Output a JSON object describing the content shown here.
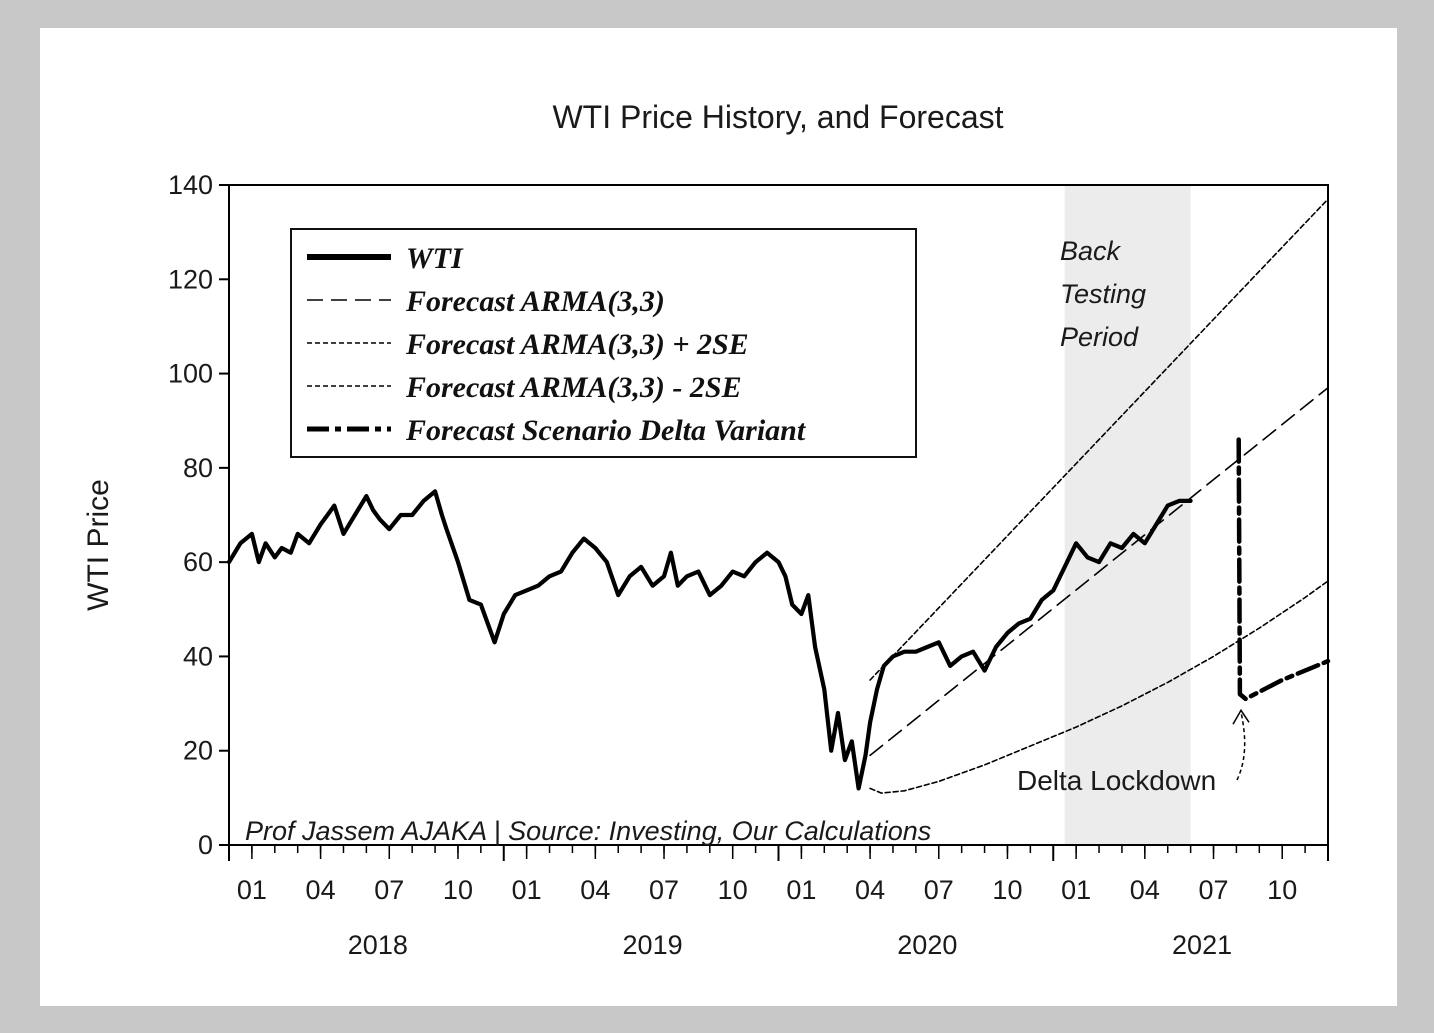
{
  "chart_data": {
    "type": "line",
    "title": "WTI Price History, and Forecast",
    "xlabel": "",
    "ylabel": "WTI Price",
    "ylim": [
      0,
      140
    ],
    "yticks": [
      0,
      20,
      40,
      60,
      80,
      100,
      120,
      140
    ],
    "xlim": [
      0,
      48
    ],
    "x_tick_labels": [
      {
        "m": 1,
        "label": "01"
      },
      {
        "m": 4,
        "label": "04"
      },
      {
        "m": 7,
        "label": "07"
      },
      {
        "m": 10,
        "label": "10"
      },
      {
        "m": 13,
        "label": "01"
      },
      {
        "m": 16,
        "label": "04"
      },
      {
        "m": 19,
        "label": "07"
      },
      {
        "m": 22,
        "label": "10"
      },
      {
        "m": 25,
        "label": "01"
      },
      {
        "m": 28,
        "label": "04"
      },
      {
        "m": 31,
        "label": "07"
      },
      {
        "m": 34,
        "label": "10"
      },
      {
        "m": 37,
        "label": "01"
      },
      {
        "m": 40,
        "label": "04"
      },
      {
        "m": 43,
        "label": "07"
      },
      {
        "m": 46,
        "label": "10"
      }
    ],
    "year_labels": [
      {
        "m": 6.5,
        "label": "2018"
      },
      {
        "m": 18.5,
        "label": "2019"
      },
      {
        "m": 30.5,
        "label": "2020"
      },
      {
        "m": 42.5,
        "label": "2021"
      }
    ],
    "grid": false,
    "legend_position": "top-left",
    "shaded_region": {
      "x_start": 36.5,
      "x_end": 42,
      "label_lines": [
        "Back",
        "Testing",
        "Period"
      ],
      "color": "#ececec"
    },
    "series": [
      {
        "name": "WTI",
        "style": "solid-thick",
        "x": [
          0,
          0.5,
          1.0,
          1.3,
          1.6,
          2.0,
          2.3,
          2.7,
          3.0,
          3.5,
          4.0,
          4.3,
          4.6,
          5.0,
          5.5,
          6.0,
          6.3,
          6.6,
          7.0,
          7.5,
          8.0,
          8.5,
          9.0,
          9.3,
          9.5,
          10.0,
          10.5,
          11.0,
          11.3,
          11.6,
          12.0,
          12.5,
          13.0,
          13.5,
          14.0,
          14.5,
          15.0,
          15.5,
          16.0,
          16.5,
          17.0,
          17.5,
          18.0,
          18.5,
          19.0,
          19.3,
          19.6,
          20.0,
          20.5,
          21.0,
          21.5,
          22.0,
          22.5,
          23.0,
          23.5,
          24.0,
          24.3,
          24.6,
          25.0,
          25.3,
          25.6,
          26.0,
          26.3,
          26.6,
          26.9,
          27.2,
          27.5,
          27.8,
          28.0,
          28.3,
          28.6,
          29.0,
          29.5,
          30.0,
          30.5,
          31.0,
          31.5,
          32.0,
          32.5,
          33.0,
          33.5,
          34.0,
          34.5,
          35.0,
          35.5,
          36.0,
          36.5,
          37.0,
          37.5,
          38.0,
          38.5,
          39.0,
          39.5,
          40.0,
          40.5,
          41.0,
          41.5,
          42.0
        ],
        "y": [
          60,
          64,
          66,
          60,
          64,
          61,
          63,
          62,
          66,
          64,
          68,
          70,
          72,
          66,
          70,
          74,
          71,
          69,
          67,
          70,
          70,
          73,
          75,
          70,
          67,
          60,
          52,
          51,
          47,
          43,
          49,
          53,
          54,
          55,
          57,
          58,
          62,
          65,
          63,
          60,
          53,
          57,
          59,
          55,
          57,
          62,
          55,
          57,
          58,
          53,
          55,
          58,
          57,
          60,
          62,
          60,
          57,
          51,
          49,
          53,
          42,
          33,
          20,
          28,
          18,
          22,
          12,
          19,
          26,
          33,
          38,
          40,
          41,
          41,
          42,
          43,
          38,
          40,
          41,
          37,
          42,
          45,
          47,
          48,
          52,
          54,
          59,
          64,
          61,
          60,
          64,
          63,
          66,
          64,
          68,
          72,
          73,
          73
        ]
      },
      {
        "name": "Forecast  ARMA(3,3)",
        "style": "long-dash",
        "x": [
          28.0,
          48.0
        ],
        "y": [
          19,
          97
        ]
      },
      {
        "name": "Forecast  ARMA(3,3) + 2SE",
        "style": "short-dash",
        "x": [
          28.0,
          48.0
        ],
        "y": [
          35,
          137
        ]
      },
      {
        "name": "Forecast  ARMA(3,3) - 2SE",
        "style": "short-dash",
        "x": [
          28.0,
          28.5,
          29.5,
          31.0,
          33.0,
          35.0,
          37.0,
          39.0,
          41.0,
          43.0,
          45.0,
          47.0,
          48.0
        ],
        "y": [
          12,
          11,
          11.5,
          13.5,
          17,
          21,
          25,
          29.5,
          34.5,
          40,
          46,
          52.5,
          56
        ]
      },
      {
        "name": "Forecast  Scenario Delta Variant",
        "style": "dash-dot-thick",
        "x": [
          44.1,
          44.15,
          44.4,
          45.0,
          46.0,
          47.0,
          48.0
        ],
        "y": [
          86,
          32,
          31,
          32.5,
          35,
          37,
          39
        ]
      }
    ],
    "annotations": [
      {
        "text": "Delta Lockdown",
        "x": 43.0,
        "y": 14,
        "arrow_to": [
          44.2,
          29
        ]
      },
      {
        "text": "Prof Jassem AJAKA | Source: Investing, Our Calculations",
        "position": "bottom-left"
      }
    ]
  }
}
